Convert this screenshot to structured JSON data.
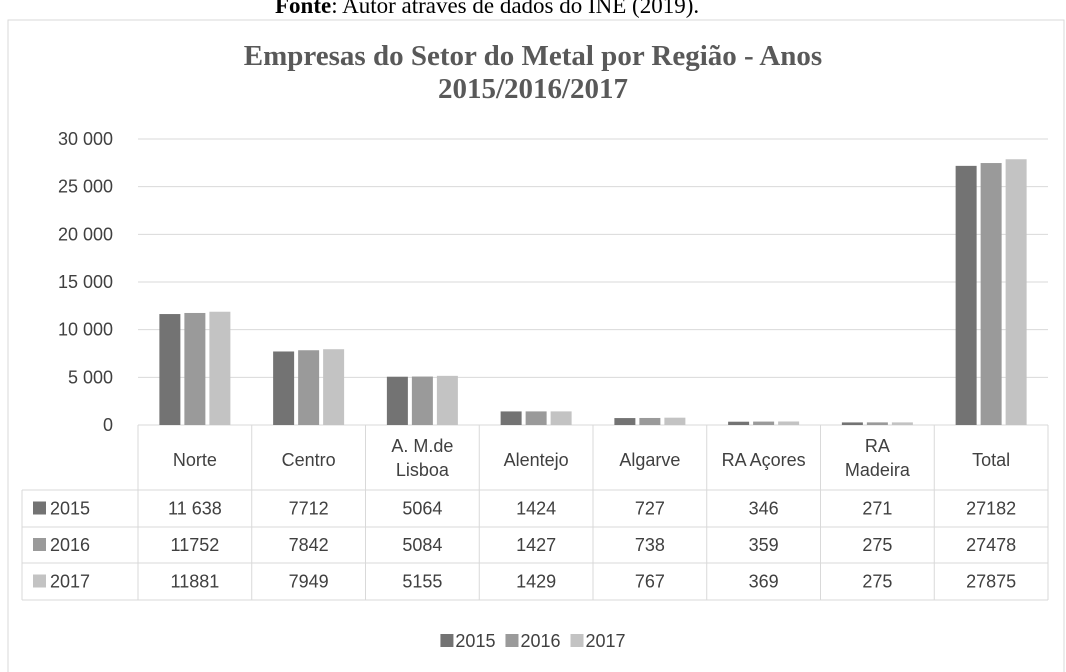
{
  "chart_data": {
    "type": "bar",
    "source_label": "Fonte",
    "source_text": ": Autor através de dados do INE (2019).",
    "title": "Empresas do Setor do Metal por Região - Anos 2015/2016/2017",
    "categories": [
      "Norte",
      "Centro",
      "A. M.de Lisboa",
      "Alentejo",
      "Algarve",
      "RA Açores",
      "RA Madeira",
      "Total"
    ],
    "series": [
      {
        "name": "2015",
        "color": "#737373",
        "values": [
          11638,
          7712,
          5064,
          1424,
          727,
          346,
          271,
          27182
        ],
        "value_labels": [
          "11 638",
          "7712",
          "5064",
          "1424",
          "727",
          "346",
          "271",
          "27182"
        ]
      },
      {
        "name": "2016",
        "color": "#9a9a9a",
        "values": [
          11752,
          7842,
          5084,
          1427,
          738,
          359,
          275,
          27478
        ]
      },
      {
        "name": "2017",
        "color": "#c3c3c3",
        "values": [
          11881,
          7949,
          5155,
          1429,
          767,
          369,
          275,
          27875
        ]
      }
    ],
    "ylim": [
      0,
      30000
    ],
    "yticks": [
      {
        "value": 0,
        "label": "0"
      },
      {
        "value": 5000,
        "label": "5 000"
      },
      {
        "value": 10000,
        "label": "10 000"
      },
      {
        "value": 15000,
        "label": "15 000"
      },
      {
        "value": 20000,
        "label": "20 000"
      },
      {
        "value": 25000,
        "label": "25 000"
      },
      {
        "value": 30000,
        "label": "30 000"
      }
    ],
    "grid": true,
    "data_table": true,
    "legend": "bottom"
  }
}
